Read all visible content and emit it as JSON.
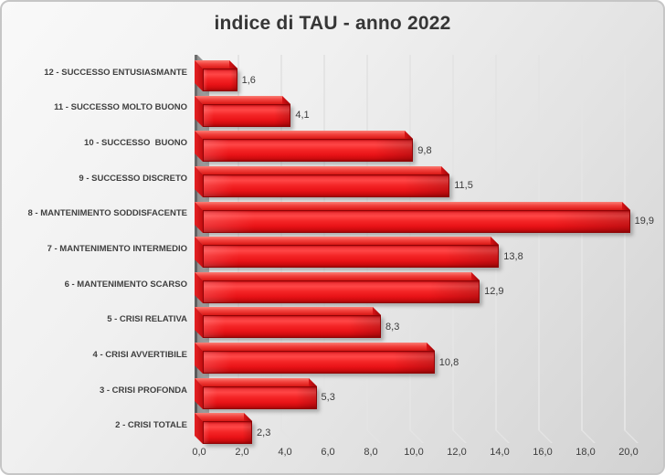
{
  "title": "indice di TAU - anno 2022",
  "chart_data": {
    "type": "bar",
    "orientation": "horizontal",
    "style": "3d",
    "title": "indice di TAU - anno 2022",
    "categories": [
      "12 - SUCCESSO ENTUSIASMANTE",
      "11 - SUCCESSO MOLTO BUONO",
      "10 - SUCCESSO  BUONO",
      "9 - SUCCESSO DISCRETO",
      "8 - MANTENIMENTO SODDISFACENTE",
      "7 - MANTENIMENTO INTERMEDIO",
      "6 - MANTENIMENTO SCARSO",
      "5 - CRISI RELATIVA",
      "4 - CRISI AVVERTIBILE",
      "3 - CRISI PROFONDA",
      "2 - CRISI TOTALE"
    ],
    "values": [
      1.6,
      4.1,
      9.8,
      11.5,
      19.9,
      13.8,
      12.9,
      8.3,
      10.8,
      5.3,
      2.3
    ],
    "value_labels": [
      "1,6",
      "4,1",
      "9,8",
      "11,5",
      "19,9",
      "13,8",
      "12,9",
      "8,3",
      "10,8",
      "5,3",
      "2,3"
    ],
    "xlim": [
      0,
      20
    ],
    "x_ticks": [
      0,
      2,
      4,
      6,
      8,
      10,
      12,
      14,
      16,
      18,
      20
    ],
    "x_tick_labels": [
      "0,0",
      "2,0",
      "4,0",
      "6,0",
      "8,0",
      "10,0",
      "12,0",
      "14,0",
      "16,0",
      "18,0",
      "20,0"
    ],
    "grid": "vertical-major",
    "legend": "none",
    "bar_color": "#ee1c1c",
    "label_color": "#3f3f3f",
    "title_color": "#363636",
    "background": "gradient-gray"
  }
}
